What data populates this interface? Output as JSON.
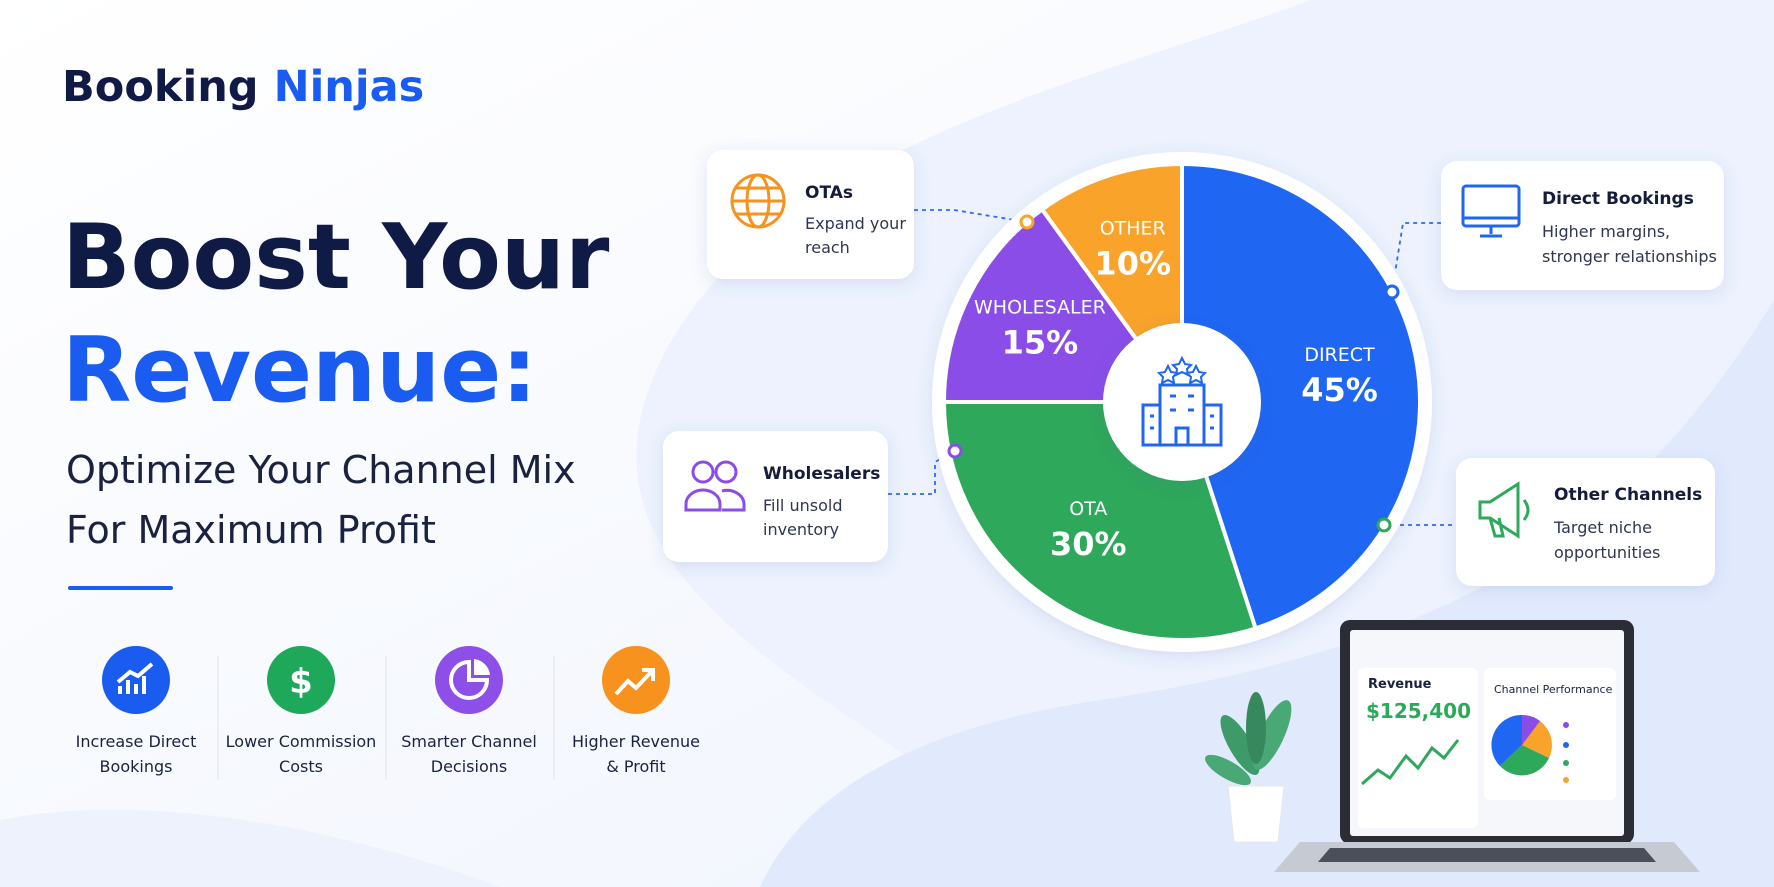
{
  "brand": {
    "first": "Booking",
    "second": "Ninjas"
  },
  "headline": {
    "line1": "Boost Your",
    "line2": "Revenue:"
  },
  "subheadline": [
    "Optimize Your Channel Mix",
    "For Maximum Profit"
  ],
  "benefits": [
    {
      "lines": [
        "Increase Direct",
        "Bookings"
      ]
    },
    {
      "lines": [
        "Lower Commission",
        "Costs"
      ]
    },
    {
      "lines": [
        "Smarter Channel",
        "Decisions"
      ]
    },
    {
      "lines": [
        "Higher Revenue",
        "& Profit"
      ]
    }
  ],
  "chart_data": {
    "type": "pie",
    "categories": [
      "DIRECT",
      "OTA",
      "WHOLESALER",
      "OTHER"
    ],
    "values": [
      45,
      30,
      15,
      10
    ],
    "value_labels": [
      "45%",
      "30%",
      "15%",
      "10%"
    ],
    "colors": [
      "#1f66f2",
      "#2ea85a",
      "#8a4de8",
      "#f9a32b"
    ]
  },
  "callouts": [
    {
      "title": "OTAs",
      "lines": [
        "Expand your",
        "reach"
      ]
    },
    {
      "title": "Wholesalers",
      "lines": [
        "Fill unsold",
        "inventory"
      ]
    },
    {
      "title": "Direct Bookings",
      "lines": [
        "Higher margins,",
        "stronger relationships"
      ]
    },
    {
      "title": "Other Channels",
      "lines": [
        "Target niche",
        "opportunities"
      ]
    }
  ],
  "dashboard": {
    "revenue_label": "Revenue",
    "revenue_value": "$125,400",
    "panel_title": "Channel Performance"
  }
}
